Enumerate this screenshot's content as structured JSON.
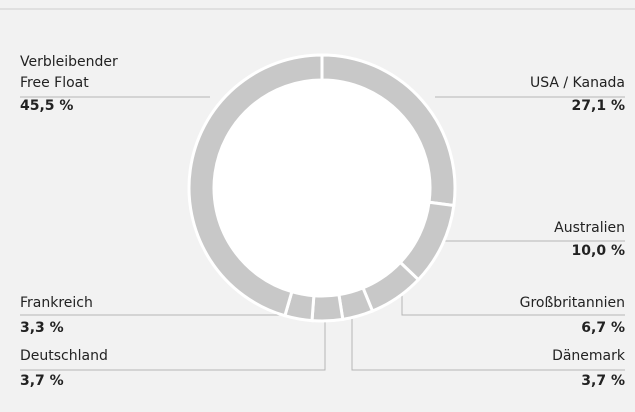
{
  "chart_data": {
    "type": "donut",
    "categories": [
      "USA / Kanada",
      "Australien",
      "Großbritannien",
      "Dänemark",
      "Deutschland",
      "Frankreich",
      "Verbleibender Free Float"
    ],
    "values": [
      27.1,
      10.0,
      6.7,
      3.7,
      3.7,
      3.3,
      45.5
    ],
    "value_labels": [
      "27,1 %",
      "10,0 %",
      "6,7 %",
      "3,7 %",
      "3,7 %",
      "3,3 %",
      "45,5 %"
    ],
    "color": "#c8c8c8"
  }
}
